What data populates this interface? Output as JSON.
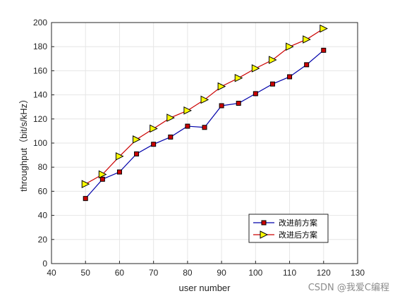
{
  "chart_data": {
    "type": "line",
    "title": "",
    "xlabel": "user number",
    "ylabel": "throughput（bit/s/kHz）",
    "xlim": [
      40,
      130
    ],
    "ylim": [
      0,
      200
    ],
    "xticks": [
      40,
      50,
      60,
      70,
      80,
      90,
      100,
      110,
      120,
      130
    ],
    "yticks": [
      0,
      20,
      40,
      60,
      80,
      100,
      120,
      140,
      160,
      180,
      200
    ],
    "grid": true,
    "legend_position": "bottom-right",
    "x": [
      50,
      55,
      60,
      65,
      70,
      75,
      80,
      85,
      90,
      95,
      100,
      105,
      110,
      115,
      120
    ],
    "series": [
      {
        "name": "改进前方案",
        "values": [
          54,
          70,
          76,
          91,
          99,
          105,
          114,
          113,
          131,
          133,
          141,
          149,
          155,
          165,
          177
        ],
        "line_color": "#0000aa",
        "marker": "square",
        "marker_color": "#cc0000"
      },
      {
        "name": "改进后方案",
        "values": [
          66,
          74,
          89,
          103,
          112,
          121,
          127,
          136,
          147,
          154,
          162,
          169,
          180,
          186,
          195
        ],
        "line_color": "#cc0000",
        "marker": "triangle-right",
        "marker_color": "#ffff00"
      }
    ]
  },
  "watermark": "CSDN @我爱C编程"
}
